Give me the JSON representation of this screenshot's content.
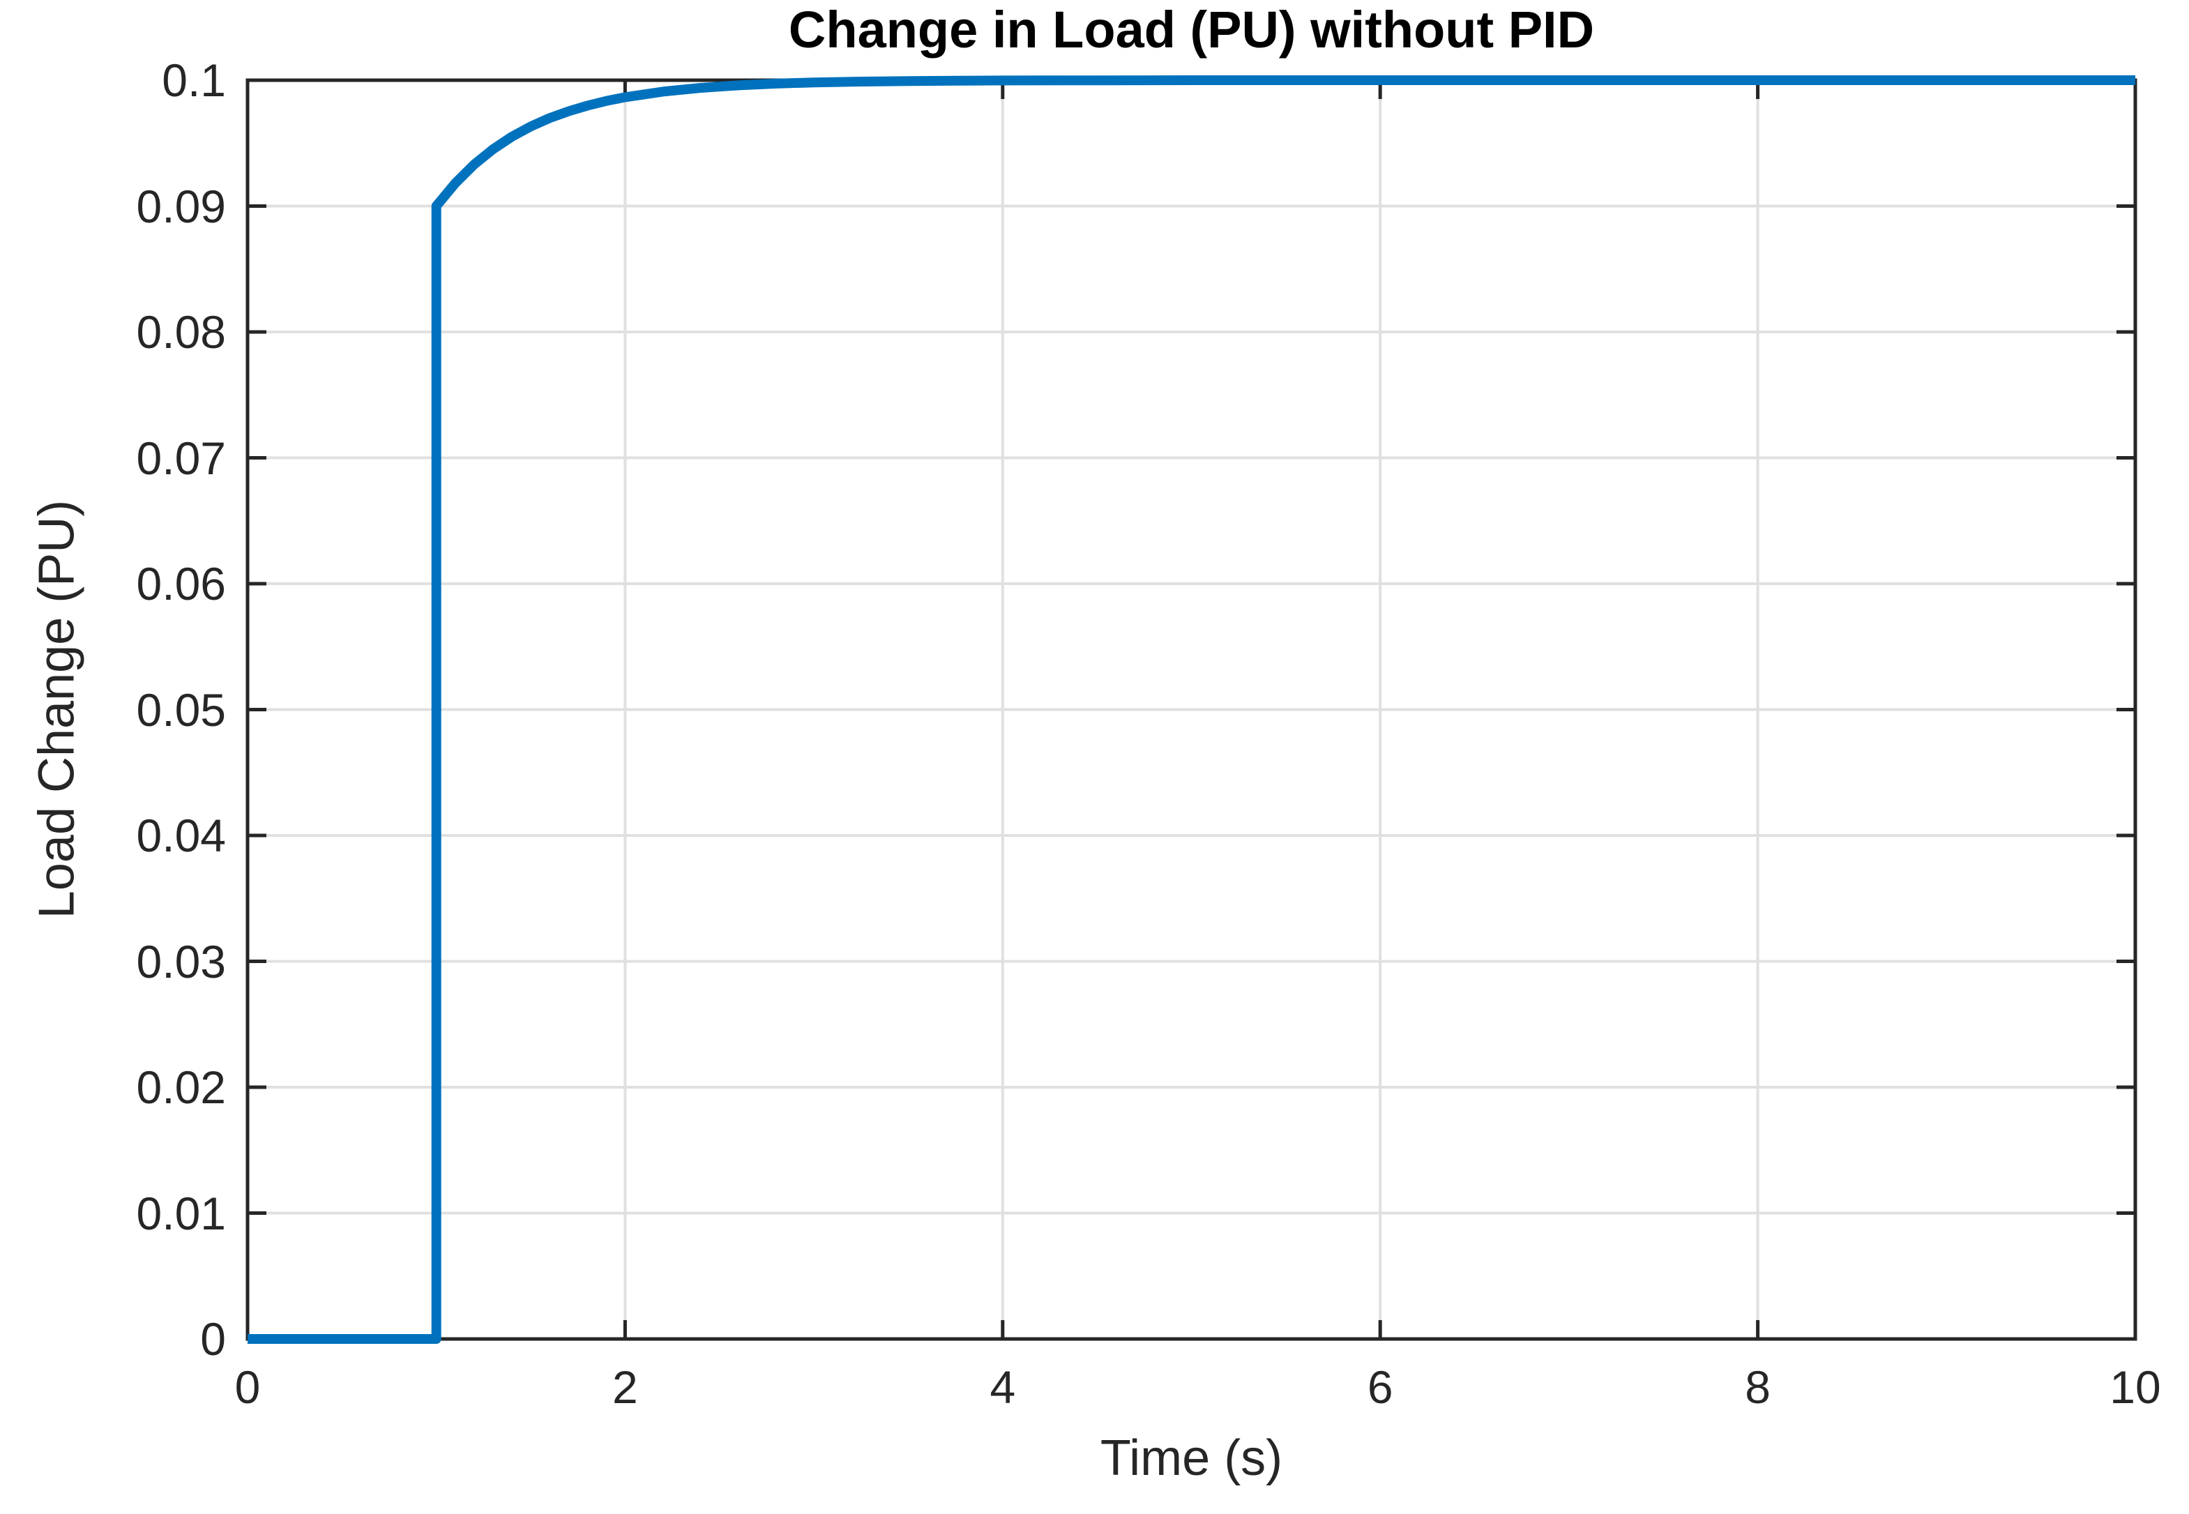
{
  "figure": {
    "background": "#FFFFFF"
  },
  "chart_data": {
    "type": "line",
    "title": "Change in Load (PU) without PID",
    "xlabel": "Time (s)",
    "ylabel": "Load Change (PU)",
    "xlim": [
      0,
      10
    ],
    "ylim": [
      0,
      0.1
    ],
    "grid": true,
    "legend": "none",
    "box": true,
    "tick_direction": "in",
    "xticks": {
      "values": [
        0,
        2,
        4,
        6,
        8,
        10
      ],
      "labels": [
        "0",
        "2",
        "4",
        "6",
        "8",
        "10"
      ]
    },
    "yticks": {
      "values": [
        0,
        0.01,
        0.02,
        0.03,
        0.04,
        0.05,
        0.06,
        0.07,
        0.08,
        0.09,
        0.1
      ],
      "labels": [
        "0",
        "0.01",
        "0.02",
        "0.03",
        "0.04",
        "0.05",
        "0.06",
        "0.07",
        "0.08",
        "0.09",
        "0.1"
      ]
    },
    "colors": {
      "line": "#0072BD",
      "axis": "#262626",
      "grid": "#E0E0E0",
      "title": "#000000",
      "tick_text": "#262626"
    },
    "series": [
      {
        "name": "load-change",
        "x": [
          0,
          1,
          1,
          1.1,
          1.2,
          1.3,
          1.4,
          1.5,
          1.6,
          1.7,
          1.8,
          1.9,
          2.0,
          2.2,
          2.4,
          2.6,
          2.8,
          3.0,
          3.25,
          3.5,
          3.75,
          4.0,
          4.5,
          5.0,
          6.0,
          7.0,
          8.0,
          9.0,
          10.0
        ],
        "y": [
          0,
          0,
          0.09,
          0.09181,
          0.0933,
          0.09451,
          0.09551,
          0.09632,
          0.09699,
          0.09753,
          0.09798,
          0.09835,
          0.09865,
          0.09909,
          0.09939,
          0.09959,
          0.09973,
          0.09982,
          0.09989,
          0.09993,
          0.09996,
          0.09998,
          0.09999,
          0.1,
          0.1,
          0.1,
          0.1,
          0.1,
          0.1
        ]
      }
    ],
    "annotations": {
      "step_time": 1,
      "jump_value": 0.09,
      "steady_state": 0.1
    }
  }
}
